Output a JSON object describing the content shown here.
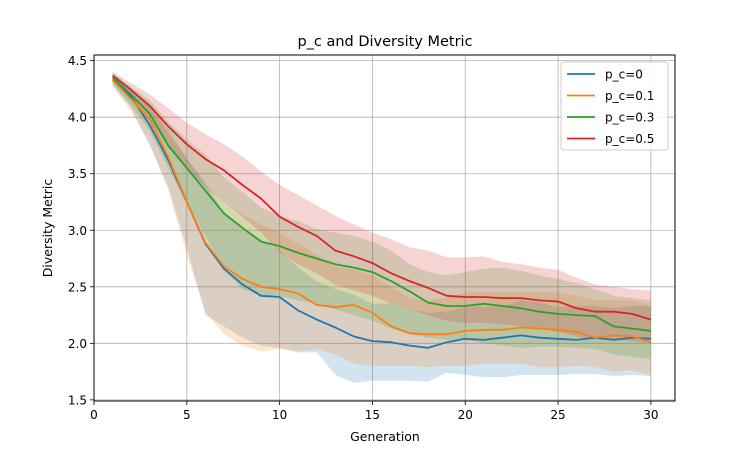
{
  "chart_data": {
    "type": "line",
    "title": "p_c and Diversity Metric",
    "xlabel": "Generation",
    "ylabel": "Diversity Metric",
    "xlim": [
      0,
      31.3
    ],
    "ylim": [
      1.49,
      4.55
    ],
    "xticks": [
      0,
      5,
      10,
      15,
      20,
      25,
      30
    ],
    "yticks": [
      1.5,
      2.0,
      2.5,
      3.0,
      3.5,
      4.0,
      4.5
    ],
    "xtick_labels": [
      "0",
      "5",
      "10",
      "15",
      "20",
      "25",
      "30"
    ],
    "ytick_labels": [
      "1.5",
      "2.0",
      "2.5",
      "3.0",
      "3.5",
      "4.0",
      "4.5"
    ],
    "grid": true,
    "legend_position": "top-right",
    "x": [
      1,
      2,
      3,
      4,
      5,
      6,
      7,
      8,
      9,
      10,
      11,
      12,
      13,
      14,
      15,
      16,
      17,
      18,
      19,
      20,
      21,
      22,
      23,
      24,
      25,
      26,
      27,
      28,
      29,
      30
    ],
    "series": [
      {
        "name": "p_c=0",
        "color": "#1f77b4",
        "values": [
          4.35,
          4.18,
          3.93,
          3.62,
          3.25,
          2.88,
          2.66,
          2.52,
          2.42,
          2.41,
          2.29,
          2.21,
          2.14,
          2.06,
          2.02,
          2.01,
          1.98,
          1.96,
          2.01,
          2.04,
          2.03,
          2.05,
          2.07,
          2.05,
          2.04,
          2.03,
          2.05,
          2.03,
          2.05,
          2.04
        ],
        "lower": [
          4.28,
          4.08,
          3.75,
          3.38,
          2.85,
          2.25,
          2.15,
          2.05,
          1.98,
          1.96,
          1.92,
          1.92,
          1.72,
          1.65,
          1.67,
          1.67,
          1.67,
          1.66,
          1.74,
          1.72,
          1.7,
          1.7,
          1.72,
          1.72,
          1.72,
          1.73,
          1.73,
          1.71,
          1.72,
          1.71
        ],
        "upper": [
          4.4,
          4.26,
          4.1,
          3.86,
          3.64,
          3.42,
          3.15,
          3.0,
          2.92,
          2.82,
          2.67,
          2.55,
          2.48,
          2.43,
          2.35,
          2.35,
          2.3,
          2.27,
          2.28,
          2.32,
          2.32,
          2.33,
          2.38,
          2.36,
          2.32,
          2.33,
          2.33,
          2.31,
          2.33,
          2.33
        ]
      },
      {
        "name": "p_c=0.1",
        "color": "#ff7f0e",
        "values": [
          4.33,
          4.16,
          3.98,
          3.65,
          3.25,
          2.89,
          2.68,
          2.57,
          2.5,
          2.48,
          2.44,
          2.34,
          2.32,
          2.34,
          2.27,
          2.15,
          2.09,
          2.08,
          2.08,
          2.11,
          2.12,
          2.12,
          2.14,
          2.13,
          2.12,
          2.1,
          2.05,
          2.07,
          2.06,
          2.01
        ],
        "lower": [
          4.28,
          4.05,
          3.77,
          3.36,
          2.78,
          2.28,
          2.08,
          1.98,
          1.93,
          1.95,
          1.93,
          1.95,
          1.9,
          1.82,
          1.8,
          1.8,
          1.8,
          1.79,
          1.8,
          1.8,
          1.82,
          1.82,
          1.82,
          1.79,
          1.79,
          1.8,
          1.79,
          1.75,
          1.76,
          1.72
        ],
        "upper": [
          4.38,
          4.24,
          4.13,
          3.9,
          3.63,
          3.4,
          3.25,
          3.14,
          3.05,
          2.98,
          2.88,
          2.78,
          2.68,
          2.65,
          2.6,
          2.5,
          2.4,
          2.38,
          2.4,
          2.45,
          2.45,
          2.45,
          2.45,
          2.45,
          2.45,
          2.42,
          2.38,
          2.38,
          2.38,
          2.33
        ]
      },
      {
        "name": "p_c=0.3",
        "color": "#2ca02c",
        "values": [
          4.35,
          4.2,
          4.03,
          3.75,
          3.55,
          3.35,
          3.15,
          3.02,
          2.9,
          2.86,
          2.8,
          2.75,
          2.7,
          2.67,
          2.63,
          2.55,
          2.46,
          2.36,
          2.33,
          2.33,
          2.35,
          2.33,
          2.31,
          2.28,
          2.26,
          2.25,
          2.24,
          2.15,
          2.13,
          2.11
        ],
        "lower": [
          4.3,
          4.1,
          3.88,
          3.55,
          3.23,
          2.95,
          2.65,
          2.48,
          2.42,
          2.42,
          2.38,
          2.35,
          2.3,
          2.25,
          2.2,
          2.13,
          2.08,
          2.05,
          2.03,
          2.03,
          2.0,
          1.98,
          1.96,
          1.97,
          1.97,
          1.96,
          1.95,
          1.9,
          1.88,
          1.86
        ],
        "upper": [
          4.38,
          4.27,
          4.15,
          3.96,
          3.8,
          3.67,
          3.47,
          3.34,
          3.2,
          3.13,
          3.08,
          3.01,
          2.98,
          2.95,
          2.9,
          2.82,
          2.7,
          2.63,
          2.6,
          2.63,
          2.66,
          2.67,
          2.64,
          2.6,
          2.57,
          2.53,
          2.48,
          2.42,
          2.4,
          2.38
        ]
      },
      {
        "name": "p_c=0.5",
        "color": "#d62728",
        "values": [
          4.37,
          4.24,
          4.1,
          3.92,
          3.76,
          3.63,
          3.53,
          3.4,
          3.28,
          3.12,
          3.03,
          2.95,
          2.82,
          2.77,
          2.71,
          2.62,
          2.55,
          2.49,
          2.42,
          2.41,
          2.41,
          2.4,
          2.4,
          2.38,
          2.37,
          2.31,
          2.28,
          2.28,
          2.26,
          2.21
        ],
        "lower": [
          4.32,
          4.15,
          3.97,
          3.75,
          3.55,
          3.38,
          3.25,
          3.12,
          2.98,
          2.8,
          2.7,
          2.62,
          2.52,
          2.47,
          2.42,
          2.35,
          2.3,
          2.25,
          2.2,
          2.18,
          2.18,
          2.17,
          2.15,
          2.13,
          2.1,
          2.06,
          2.03,
          2.03,
          2.02,
          2.0
        ],
        "upper": [
          4.4,
          4.3,
          4.2,
          4.08,
          3.95,
          3.85,
          3.76,
          3.65,
          3.52,
          3.4,
          3.31,
          3.22,
          3.13,
          3.05,
          2.98,
          2.92,
          2.85,
          2.82,
          2.76,
          2.76,
          2.77,
          2.72,
          2.7,
          2.67,
          2.65,
          2.58,
          2.52,
          2.5,
          2.48,
          2.47
        ]
      }
    ]
  }
}
